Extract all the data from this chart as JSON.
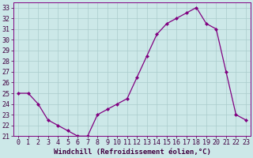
{
  "x": [
    0,
    1,
    2,
    3,
    4,
    5,
    6,
    7,
    8,
    9,
    10,
    11,
    12,
    13,
    14,
    15,
    16,
    17,
    18,
    19,
    20,
    21,
    22,
    23
  ],
  "y": [
    25,
    25,
    24,
    22.5,
    22,
    21.5,
    21,
    21,
    23,
    23.5,
    24,
    24.5,
    26.5,
    28.5,
    30.5,
    31.5,
    32,
    32.5,
    33,
    31.5,
    31,
    27,
    23,
    22.5
  ],
  "xlabel": "Windchill (Refroidissement éolien,°C)",
  "ylim": [
    21,
    33.5
  ],
  "xlim": [
    -0.5,
    23.5
  ],
  "yticks": [
    21,
    22,
    23,
    24,
    25,
    26,
    27,
    28,
    29,
    30,
    31,
    32,
    33
  ],
  "xticks": [
    0,
    1,
    2,
    3,
    4,
    5,
    6,
    7,
    8,
    9,
    10,
    11,
    12,
    13,
    14,
    15,
    16,
    17,
    18,
    19,
    20,
    21,
    22,
    23
  ],
  "line_color": "#800080",
  "marker_color": "#800080",
  "bg_color": "#cce8e8",
  "grid_color": "#aacccc",
  "tick_fontsize": 6.0,
  "xlabel_fontsize": 6.5
}
